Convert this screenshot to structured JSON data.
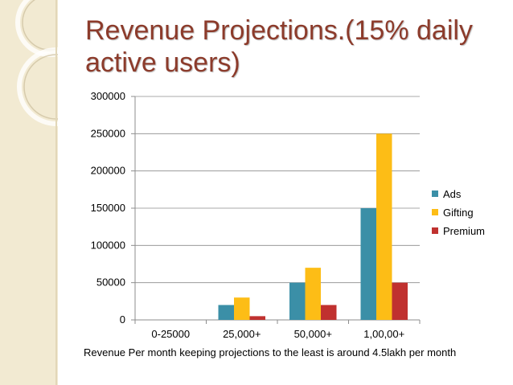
{
  "slide": {
    "title": "Revenue Projections.(15% daily active users)",
    "footer": "Revenue Per month keeping projections to the least is around 4.5lakh per month"
  },
  "colors": {
    "title": "#8c3b2b",
    "ads": "#3b8fa7",
    "gifting": "#fdbd16",
    "premium": "#c0312f",
    "side_panel": "#f2ead2"
  },
  "chart_data": {
    "type": "bar",
    "title": "",
    "xlabel": "",
    "ylabel": "",
    "categories": [
      "0-25000",
      "25,000+",
      "50,000+",
      "1,00,00+"
    ],
    "series": [
      {
        "name": "Ads",
        "values": [
          0,
          20000,
          50000,
          150000
        ]
      },
      {
        "name": "Gifting",
        "values": [
          0,
          30000,
          70000,
          250000
        ]
      },
      {
        "name": "Premium",
        "values": [
          0,
          5000,
          20000,
          50000
        ]
      }
    ],
    "ylim": [
      0,
      300000
    ],
    "yticks": [
      0,
      50000,
      100000,
      150000,
      200000,
      250000,
      300000
    ],
    "legend": "right",
    "grid": true
  }
}
